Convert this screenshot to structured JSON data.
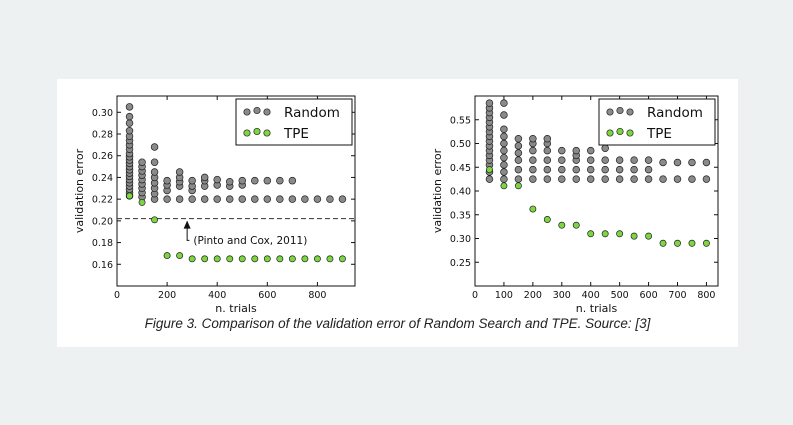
{
  "caption": "Figure 3. Comparison of the validation error of Random Search and TPE. Source: [3]",
  "colors": {
    "random": "#8a8a8a",
    "tpe": "#7cd640",
    "edge": "#222222"
  },
  "chart_data": [
    {
      "type": "scatter",
      "xlabel": "n. trials",
      "ylabel": "validation error",
      "xlim": [
        0,
        950
      ],
      "ylim": [
        0.14,
        0.315
      ],
      "xticks": [
        "0",
        "200",
        "400",
        "600",
        "800"
      ],
      "xtick_values": [
        0,
        200,
        400,
        600,
        800
      ],
      "yticks": [
        "0.16",
        "0.18",
        "0.20",
        "0.22",
        "0.24",
        "0.26",
        "0.28",
        "0.30"
      ],
      "ytick_values": [
        0.16,
        0.18,
        0.2,
        0.22,
        0.24,
        0.26,
        0.28,
        0.3
      ],
      "grid": false,
      "legend_position": "top-right",
      "series": [
        {
          "name": "Random",
          "points": [
            [
              50,
              0.223
            ],
            [
              50,
              0.226
            ],
            [
              50,
              0.229
            ],
            [
              50,
              0.232
            ],
            [
              50,
              0.235
            ],
            [
              50,
              0.238
            ],
            [
              50,
              0.241
            ],
            [
              50,
              0.244
            ],
            [
              50,
              0.247
            ],
            [
              50,
              0.25
            ],
            [
              50,
              0.253
            ],
            [
              50,
              0.256
            ],
            [
              50,
              0.259
            ],
            [
              50,
              0.262
            ],
            [
              50,
              0.266
            ],
            [
              50,
              0.27
            ],
            [
              50,
              0.274
            ],
            [
              50,
              0.278
            ],
            [
              50,
              0.283
            ],
            [
              50,
              0.29
            ],
            [
              50,
              0.296
            ],
            [
              50,
              0.305
            ],
            [
              100,
              0.222
            ],
            [
              100,
              0.226
            ],
            [
              100,
              0.23
            ],
            [
              100,
              0.234
            ],
            [
              100,
              0.238
            ],
            [
              100,
              0.242
            ],
            [
              100,
              0.246
            ],
            [
              100,
              0.25
            ],
            [
              100,
              0.254
            ],
            [
              150,
              0.22
            ],
            [
              150,
              0.225
            ],
            [
              150,
              0.23
            ],
            [
              150,
              0.235
            ],
            [
              150,
              0.24
            ],
            [
              150,
              0.245
            ],
            [
              150,
              0.254
            ],
            [
              150,
              0.268
            ],
            [
              200,
              0.22
            ],
            [
              200,
              0.228
            ],
            [
              200,
              0.233
            ],
            [
              200,
              0.237
            ],
            [
              250,
              0.22
            ],
            [
              250,
              0.232
            ],
            [
              250,
              0.236
            ],
            [
              250,
              0.24
            ],
            [
              250,
              0.245
            ],
            [
              300,
              0.22
            ],
            [
              300,
              0.228
            ],
            [
              300,
              0.232
            ],
            [
              300,
              0.237
            ],
            [
              350,
              0.22
            ],
            [
              350,
              0.232
            ],
            [
              350,
              0.237
            ],
            [
              350,
              0.24
            ],
            [
              400,
              0.22
            ],
            [
              400,
              0.233
            ],
            [
              400,
              0.238
            ],
            [
              450,
              0.22
            ],
            [
              450,
              0.232
            ],
            [
              450,
              0.236
            ],
            [
              500,
              0.22
            ],
            [
              500,
              0.233
            ],
            [
              500,
              0.237
            ],
            [
              550,
              0.22
            ],
            [
              550,
              0.237
            ],
            [
              600,
              0.22
            ],
            [
              600,
              0.237
            ],
            [
              650,
              0.22
            ],
            [
              650,
              0.237
            ],
            [
              700,
              0.22
            ],
            [
              700,
              0.237
            ],
            [
              750,
              0.22
            ],
            [
              800,
              0.22
            ],
            [
              850,
              0.22
            ],
            [
              900,
              0.22
            ]
          ]
        },
        {
          "name": "TPE",
          "points": [
            [
              50,
              0.223
            ],
            [
              100,
              0.217
            ],
            [
              150,
              0.201
            ],
            [
              200,
              0.168
            ],
            [
              250,
              0.168
            ],
            [
              300,
              0.165
            ],
            [
              350,
              0.165
            ],
            [
              400,
              0.165
            ],
            [
              450,
              0.165
            ],
            [
              500,
              0.165
            ],
            [
              550,
              0.165
            ],
            [
              600,
              0.165
            ],
            [
              650,
              0.165
            ],
            [
              700,
              0.165
            ],
            [
              750,
              0.165
            ],
            [
              800,
              0.165
            ],
            [
              850,
              0.165
            ],
            [
              900,
              0.165
            ]
          ]
        }
      ],
      "reference_line": {
        "y": 0.202,
        "style": "dashed"
      },
      "annotation": {
        "text": "(Pinto and Cox, 2011)",
        "arrow_x": 280,
        "arrow_y": 0.202,
        "text_x": 305,
        "text_y": 0.182
      }
    },
    {
      "type": "scatter",
      "xlabel": "n. trials",
      "ylabel": "validation error",
      "xlim": [
        0,
        840
      ],
      "ylim": [
        0.2,
        0.6
      ],
      "xticks": [
        "0",
        "100",
        "200",
        "300",
        "400",
        "500",
        "600",
        "700",
        "800"
      ],
      "xtick_values": [
        0,
        100,
        200,
        300,
        400,
        500,
        600,
        700,
        800
      ],
      "yticks": [
        "0.25",
        "0.30",
        "0.35",
        "0.40",
        "0.45",
        "0.50",
        "0.55"
      ],
      "ytick_values": [
        0.25,
        0.3,
        0.35,
        0.4,
        0.45,
        0.5,
        0.55
      ],
      "grid": false,
      "legend_position": "top-right",
      "series": [
        {
          "name": "Random",
          "points": [
            [
              50,
              0.425
            ],
            [
              50,
              0.44
            ],
            [
              50,
              0.455
            ],
            [
              50,
              0.465
            ],
            [
              50,
              0.475
            ],
            [
              50,
              0.485
            ],
            [
              50,
              0.495
            ],
            [
              50,
              0.505
            ],
            [
              50,
              0.515
            ],
            [
              50,
              0.525
            ],
            [
              50,
              0.535
            ],
            [
              50,
              0.545
            ],
            [
              50,
              0.555
            ],
            [
              50,
              0.565
            ],
            [
              50,
              0.575
            ],
            [
              50,
              0.585
            ],
            [
              100,
              0.425
            ],
            [
              100,
              0.44
            ],
            [
              100,
              0.455
            ],
            [
              100,
              0.47
            ],
            [
              100,
              0.485
            ],
            [
              100,
              0.5
            ],
            [
              100,
              0.515
            ],
            [
              100,
              0.53
            ],
            [
              100,
              0.56
            ],
            [
              100,
              0.585
            ],
            [
              150,
              0.425
            ],
            [
              150,
              0.445
            ],
            [
              150,
              0.465
            ],
            [
              150,
              0.48
            ],
            [
              150,
              0.495
            ],
            [
              150,
              0.51
            ],
            [
              200,
              0.425
            ],
            [
              200,
              0.445
            ],
            [
              200,
              0.465
            ],
            [
              200,
              0.485
            ],
            [
              200,
              0.5
            ],
            [
              200,
              0.51
            ],
            [
              250,
              0.425
            ],
            [
              250,
              0.445
            ],
            [
              250,
              0.465
            ],
            [
              250,
              0.485
            ],
            [
              250,
              0.5
            ],
            [
              250,
              0.51
            ],
            [
              300,
              0.425
            ],
            [
              300,
              0.445
            ],
            [
              300,
              0.465
            ],
            [
              300,
              0.485
            ],
            [
              350,
              0.425
            ],
            [
              350,
              0.445
            ],
            [
              350,
              0.465
            ],
            [
              350,
              0.475
            ],
            [
              350,
              0.485
            ],
            [
              400,
              0.425
            ],
            [
              400,
              0.445
            ],
            [
              400,
              0.465
            ],
            [
              400,
              0.485
            ],
            [
              450,
              0.425
            ],
            [
              450,
              0.445
            ],
            [
              450,
              0.465
            ],
            [
              450,
              0.49
            ],
            [
              500,
              0.425
            ],
            [
              500,
              0.445
            ],
            [
              500,
              0.465
            ],
            [
              550,
              0.425
            ],
            [
              550,
              0.445
            ],
            [
              550,
              0.465
            ],
            [
              600,
              0.425
            ],
            [
              600,
              0.445
            ],
            [
              600,
              0.465
            ],
            [
              650,
              0.425
            ],
            [
              650,
              0.46
            ],
            [
              700,
              0.425
            ],
            [
              700,
              0.46
            ],
            [
              750,
              0.425
            ],
            [
              750,
              0.46
            ],
            [
              800,
              0.425
            ],
            [
              800,
              0.46
            ]
          ]
        },
        {
          "name": "TPE",
          "points": [
            [
              50,
              0.445
            ],
            [
              100,
              0.411
            ],
            [
              150,
              0.411
            ],
            [
              200,
              0.362
            ],
            [
              250,
              0.34
            ],
            [
              300,
              0.328
            ],
            [
              350,
              0.328
            ],
            [
              400,
              0.31
            ],
            [
              450,
              0.31
            ],
            [
              500,
              0.31
            ],
            [
              550,
              0.305
            ],
            [
              600,
              0.305
            ],
            [
              650,
              0.29
            ],
            [
              700,
              0.29
            ],
            [
              750,
              0.29
            ],
            [
              800,
              0.29
            ]
          ]
        }
      ]
    }
  ]
}
